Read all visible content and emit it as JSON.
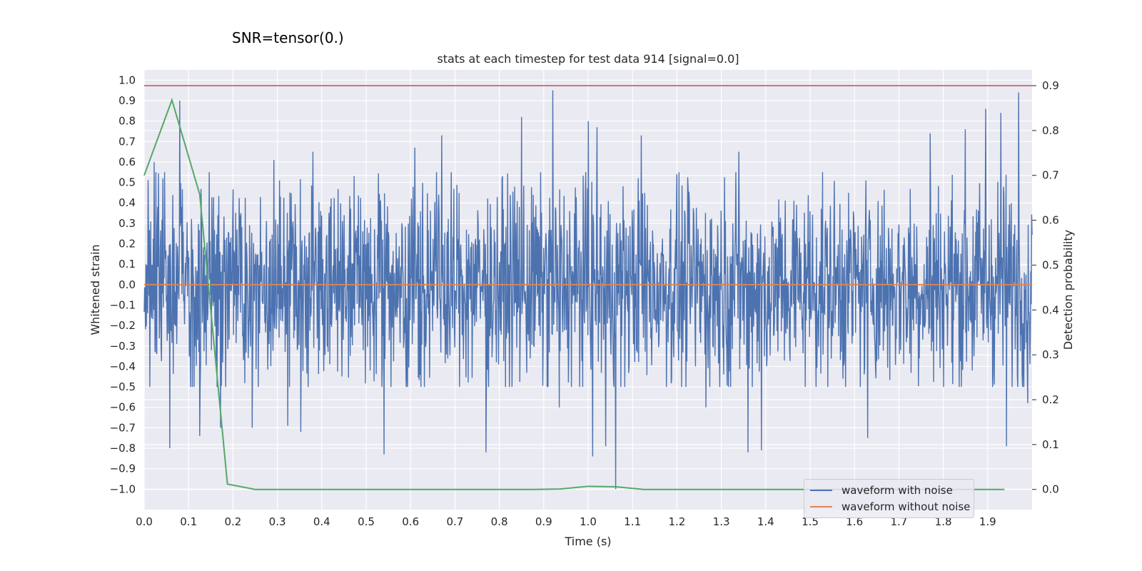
{
  "suptitle": "SNR=tensor(0.)",
  "chart_data": {
    "type": "line",
    "title": "stats at each timestep for test data 914 [signal=0.0]",
    "xlabel": "Time (s)",
    "ylabel": "Whitened strain",
    "y2label": "Detection probability",
    "xlim": [
      0.0,
      2.0
    ],
    "ylim": [
      -1.1,
      1.05
    ],
    "y2lim": [
      -0.045,
      0.935
    ],
    "xticks": [
      "0.0",
      "0.1",
      "0.2",
      "0.3",
      "0.4",
      "0.5",
      "0.6",
      "0.7",
      "0.8",
      "0.9",
      "1.0",
      "1.1",
      "1.2",
      "1.3",
      "1.4",
      "1.5",
      "1.6",
      "1.7",
      "1.8",
      "1.9"
    ],
    "yticks": [
      "1.0",
      "0.9",
      "0.8",
      "0.7",
      "0.6",
      "0.5",
      "0.4",
      "0.3",
      "0.2",
      "0.1",
      "0.0",
      "−0.1",
      "−0.2",
      "−0.3",
      "−0.4",
      "−0.5",
      "−0.6",
      "−0.7",
      "−0.8",
      "−0.9",
      "−1.0"
    ],
    "y2ticks": [
      "0.9",
      "0.8",
      "0.7",
      "0.6",
      "0.5",
      "0.4",
      "0.3",
      "0.2",
      "0.1",
      "0.0"
    ],
    "threshold": 0.9,
    "series": [
      {
        "name": "waveform with noise",
        "axis": "left",
        "color": "#4c72b0",
        "kind": "noise",
        "samples": 2048,
        "typical_range": [
          -0.5,
          0.55
        ],
        "peaks": [
          {
            "x": 0.022,
            "y": 0.6
          },
          {
            "x": 0.058,
            "y": -0.8
          },
          {
            "x": 0.08,
            "y": 0.9
          },
          {
            "x": 0.125,
            "y": -0.74
          },
          {
            "x": 0.172,
            "y": -0.7
          },
          {
            "x": 0.243,
            "y": -0.7
          },
          {
            "x": 0.292,
            "y": 0.61
          },
          {
            "x": 0.323,
            "y": -0.69
          },
          {
            "x": 0.353,
            "y": -0.72
          },
          {
            "x": 0.38,
            "y": 0.65
          },
          {
            "x": 0.54,
            "y": -0.83
          },
          {
            "x": 0.61,
            "y": 0.67
          },
          {
            "x": 0.67,
            "y": 0.73
          },
          {
            "x": 0.77,
            "y": -0.82
          },
          {
            "x": 0.85,
            "y": 0.82
          },
          {
            "x": 0.92,
            "y": 0.95
          },
          {
            "x": 0.935,
            "y": -0.6
          },
          {
            "x": 1.0,
            "y": 0.8
          },
          {
            "x": 1.02,
            "y": 0.77
          },
          {
            "x": 1.01,
            "y": -0.84
          },
          {
            "x": 1.04,
            "y": -0.79
          },
          {
            "x": 1.062,
            "y": -1.0
          },
          {
            "x": 1.12,
            "y": 0.73
          },
          {
            "x": 1.265,
            "y": -0.6
          },
          {
            "x": 1.34,
            "y": 0.65
          },
          {
            "x": 1.36,
            "y": -0.82
          },
          {
            "x": 1.39,
            "y": -0.81
          },
          {
            "x": 1.63,
            "y": -0.75
          },
          {
            "x": 1.77,
            "y": 0.74
          },
          {
            "x": 1.85,
            "y": 0.76
          },
          {
            "x": 1.895,
            "y": 0.86
          },
          {
            "x": 1.93,
            "y": 0.84
          },
          {
            "x": 1.942,
            "y": -0.79
          },
          {
            "x": 1.97,
            "y": 0.94
          },
          {
            "x": 1.99,
            "y": -0.58
          }
        ]
      },
      {
        "name": "waveform without noise",
        "axis": "left",
        "color": "#dd8452",
        "x": [
          0.0,
          2.0
        ],
        "y": [
          0.0,
          0.0
        ]
      },
      {
        "name": "Detection probability",
        "axis": "right",
        "color": "#55a868",
        "x": [
          0.0,
          0.0625,
          0.125,
          0.1875,
          0.25,
          0.3125,
          0.375,
          0.4375,
          0.5,
          0.5625,
          0.625,
          0.6875,
          0.75,
          0.8125,
          0.875,
          0.9375,
          1.0,
          1.0625,
          1.125,
          1.1875,
          1.25,
          1.3125,
          1.375,
          1.4375,
          1.5,
          1.5625,
          1.625,
          1.6875,
          1.75,
          1.8125,
          1.875,
          1.9375
        ],
        "y": [
          0.7,
          0.868,
          0.658,
          0.012,
          0.0,
          0.0,
          0.0,
          0.0,
          0.0,
          0.0,
          0.0,
          0.0,
          0.0,
          0.0,
          0.0,
          0.001,
          0.007,
          0.006,
          0.0,
          0.0,
          0.0,
          0.0,
          0.0,
          0.0,
          0.0,
          0.0,
          0.0,
          0.0,
          0.0,
          0.0,
          0.0,
          0.0
        ]
      }
    ],
    "legend": [
      "waveform with noise",
      "waveform without noise"
    ],
    "legend_position": "lower-right",
    "colors": {
      "plot_bg": "#eaeaf2",
      "grid": "#ffffff",
      "threshold": "#c44e52"
    }
  }
}
